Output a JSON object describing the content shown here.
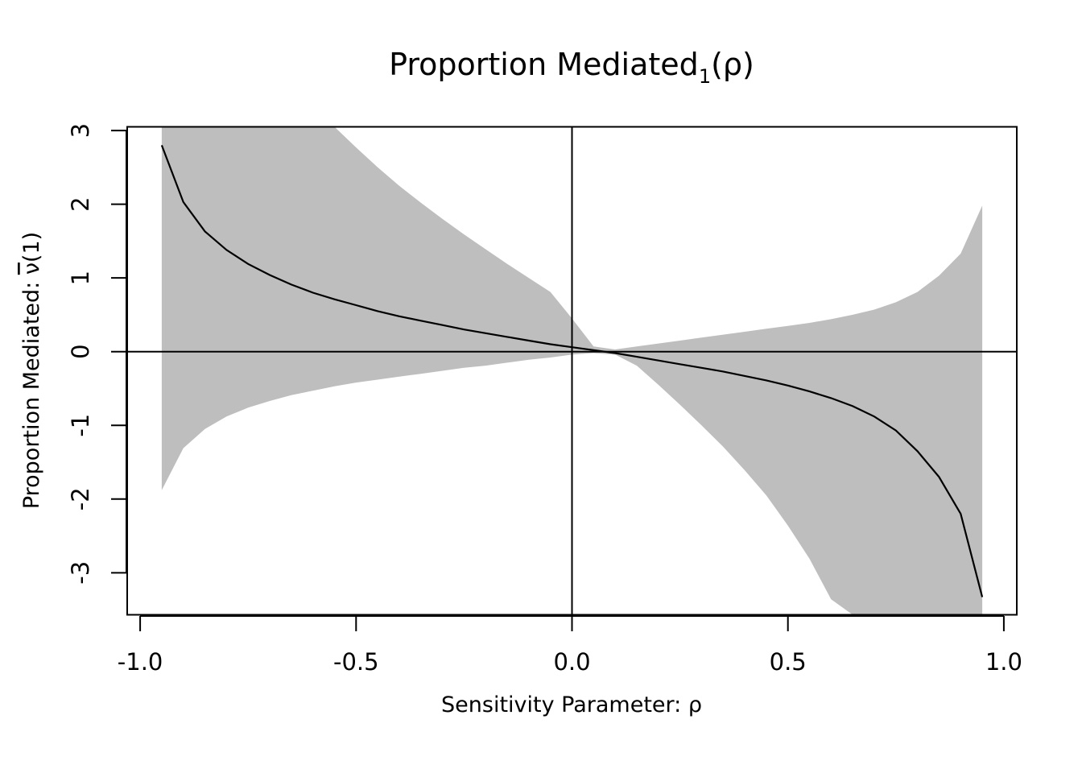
{
  "chart_data": {
    "type": "line",
    "title": {
      "main": "Proportion Mediated",
      "subscript": "1",
      "suffix": "(ρ)"
    },
    "xlabel": "Sensitivity Parameter: ρ",
    "ylabel": {
      "prefix": "Proportion Mediated: ",
      "symbol": "ν",
      "suffix": "(1)"
    },
    "xlim": [
      -1.03,
      1.03
    ],
    "ylim": [
      -3.57,
      3.05
    ],
    "xticks": [
      -1.0,
      -0.5,
      0.0,
      0.5,
      1.0
    ],
    "xtick_labels": [
      "-1.0",
      "-0.5",
      "0.0",
      "0.5",
      "1.0"
    ],
    "yticks": [
      3,
      2,
      1,
      0,
      -1,
      -2,
      -3
    ],
    "ytick_labels": [
      "3",
      "2",
      "1",
      "0",
      "-1",
      "-2",
      "-3"
    ],
    "reference_lines": {
      "x": 0,
      "y": 0
    },
    "band_color": "#bebebe",
    "line_color": "#000000",
    "series": [
      {
        "x": [
          -0.95,
          -0.9,
          -0.85,
          -0.8,
          -0.75,
          -0.7,
          -0.65,
          -0.6,
          -0.55,
          -0.5,
          -0.45,
          -0.4,
          -0.35,
          -0.3,
          -0.25,
          -0.2,
          -0.15,
          -0.1,
          -0.05,
          0.0,
          0.05,
          0.1,
          0.15,
          0.2,
          0.25,
          0.3,
          0.35,
          0.4,
          0.45,
          0.5,
          0.55,
          0.6,
          0.65,
          0.7,
          0.75,
          0.8,
          0.85,
          0.9,
          0.95
        ],
        "estimate": [
          2.8,
          2.03,
          1.63,
          1.38,
          1.19,
          1.04,
          0.91,
          0.8,
          0.71,
          0.63,
          0.55,
          0.48,
          0.42,
          0.36,
          0.3,
          0.25,
          0.2,
          0.15,
          0.1,
          0.06,
          0.02,
          -0.02,
          -0.07,
          -0.12,
          -0.17,
          -0.22,
          -0.27,
          -0.33,
          -0.39,
          -0.46,
          -0.54,
          -0.63,
          -0.74,
          -0.88,
          -1.07,
          -1.35,
          -1.7,
          -2.2,
          -3.33
        ],
        "upper": [
          3.05,
          3.05,
          3.05,
          3.05,
          3.05,
          3.05,
          3.05,
          3.05,
          3.05,
          2.77,
          2.5,
          2.25,
          2.02,
          1.8,
          1.59,
          1.39,
          1.19,
          1.0,
          0.81,
          0.45,
          0.07,
          0.03,
          0.07,
          0.11,
          0.15,
          0.19,
          0.23,
          0.27,
          0.31,
          0.35,
          0.39,
          0.44,
          0.5,
          0.57,
          0.67,
          0.81,
          1.03,
          1.33,
          1.98
        ],
        "lower": [
          -1.88,
          -1.31,
          -1.05,
          -0.88,
          -0.76,
          -0.67,
          -0.59,
          -0.53,
          -0.47,
          -0.42,
          -0.38,
          -0.34,
          -0.3,
          -0.26,
          -0.22,
          -0.19,
          -0.15,
          -0.11,
          -0.08,
          -0.04,
          -0.02,
          -0.04,
          -0.19,
          -0.45,
          -0.72,
          -1.0,
          -1.29,
          -1.61,
          -1.95,
          -2.36,
          -2.81,
          -3.36,
          -3.57,
          -3.57,
          -3.57,
          -3.57,
          -3.57,
          -3.57,
          -3.57
        ]
      }
    ]
  }
}
